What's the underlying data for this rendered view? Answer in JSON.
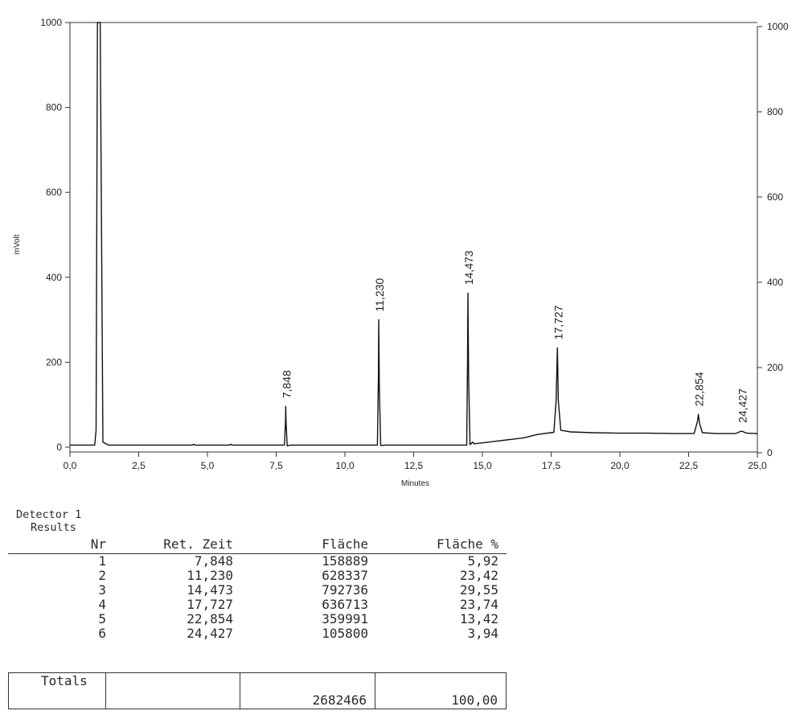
{
  "chart_data": {
    "type": "line",
    "xlabel": "Minutes",
    "ylabel": "mVolt",
    "xlim": [
      0,
      25
    ],
    "ylim_left": [
      0,
      1000
    ],
    "ylim_right": [
      0,
      1000
    ],
    "x_ticks": [
      "0,0",
      "2,5",
      "5,0",
      "7,5",
      "10,0",
      "12,5",
      "15,0",
      "17,5",
      "20,0",
      "22,5",
      "25,0"
    ],
    "x_tick_values": [
      0,
      2.5,
      5,
      7.5,
      10,
      12.5,
      15,
      17.5,
      20,
      22.5,
      25
    ],
    "y_ticks_left": [
      "0",
      "200",
      "400",
      "600",
      "800",
      "1000"
    ],
    "y_ticks_right": [
      "0",
      "200",
      "400",
      "600",
      "800",
      "1000"
    ],
    "y_tick_values": [
      0,
      200,
      400,
      600,
      800,
      1000
    ],
    "peaks": [
      {
        "label": "7,848",
        "x": 7.848,
        "y": 96
      },
      {
        "label": "11,230",
        "x": 11.23,
        "y": 300
      },
      {
        "label": "14,473",
        "x": 14.473,
        "y": 363
      },
      {
        "label": "17,727",
        "x": 17.727,
        "y": 234
      },
      {
        "label": "22,854",
        "x": 22.854,
        "y": 77
      },
      {
        "label": "24,427",
        "x": 24.427,
        "y": 38
      }
    ],
    "trace": [
      [
        0,
        5
      ],
      [
        0.9,
        5
      ],
      [
        0.95,
        40
      ],
      [
        1.0,
        1000
      ],
      [
        1.05,
        1000
      ],
      [
        1.1,
        1000
      ],
      [
        1.2,
        12
      ],
      [
        1.4,
        5
      ],
      [
        4.45,
        5
      ],
      [
        4.5,
        7
      ],
      [
        4.55,
        5
      ],
      [
        5.8,
        5
      ],
      [
        5.85,
        7
      ],
      [
        5.9,
        5
      ],
      [
        7.8,
        5
      ],
      [
        7.84,
        60
      ],
      [
        7.848,
        96
      ],
      [
        7.86,
        60
      ],
      [
        7.9,
        3
      ],
      [
        8.0,
        5
      ],
      [
        11.18,
        5
      ],
      [
        11.22,
        170
      ],
      [
        11.23,
        300
      ],
      [
        11.25,
        140
      ],
      [
        11.3,
        4
      ],
      [
        11.45,
        5
      ],
      [
        14.43,
        5
      ],
      [
        14.46,
        200
      ],
      [
        14.473,
        363
      ],
      [
        14.5,
        160
      ],
      [
        14.55,
        6
      ],
      [
        14.65,
        12
      ],
      [
        14.7,
        8
      ],
      [
        15.0,
        10
      ],
      [
        15.5,
        14
      ],
      [
        16.0,
        18
      ],
      [
        16.5,
        22
      ],
      [
        17.0,
        30
      ],
      [
        17.6,
        35
      ],
      [
        17.68,
        110
      ],
      [
        17.727,
        234
      ],
      [
        17.76,
        110
      ],
      [
        17.85,
        40
      ],
      [
        18.2,
        36
      ],
      [
        19.0,
        34
      ],
      [
        20.0,
        33
      ],
      [
        21.0,
        33
      ],
      [
        22.0,
        32
      ],
      [
        22.7,
        32
      ],
      [
        22.82,
        60
      ],
      [
        22.854,
        77
      ],
      [
        22.9,
        55
      ],
      [
        23.0,
        34
      ],
      [
        23.5,
        32
      ],
      [
        24.2,
        32
      ],
      [
        24.427,
        38
      ],
      [
        24.6,
        33
      ],
      [
        25.0,
        32
      ]
    ]
  },
  "detector_label": "Detector 1",
  "results_label": "Results",
  "table": {
    "headers": {
      "nr": "Nr",
      "ret": "Ret. Zeit",
      "flaeche": "Fläche",
      "flaeche_pct": "Fläche %"
    },
    "rows": [
      {
        "nr": "1",
        "ret": "7,848",
        "flaeche": "158889",
        "flaeche_pct": "5,92"
      },
      {
        "nr": "2",
        "ret": "11,230",
        "flaeche": "628337",
        "flaeche_pct": "23,42"
      },
      {
        "nr": "3",
        "ret": "14,473",
        "flaeche": "792736",
        "flaeche_pct": "29,55"
      },
      {
        "nr": "4",
        "ret": "17,727",
        "flaeche": "636713",
        "flaeche_pct": "23,74"
      },
      {
        "nr": "5",
        "ret": "22,854",
        "flaeche": "359991",
        "flaeche_pct": "13,42"
      },
      {
        "nr": "6",
        "ret": "24,427",
        "flaeche": "105800",
        "flaeche_pct": "3,94"
      }
    ]
  },
  "totals": {
    "label": "Totals",
    "flaeche": "2682466",
    "flaeche_pct": "100,00"
  }
}
